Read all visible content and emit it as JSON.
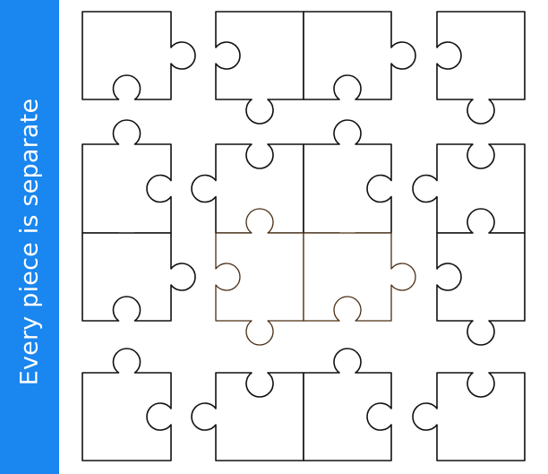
{
  "banner": {
    "text": "Every piece is separate",
    "background_color": "#1a86f0",
    "text_color": "#ffffff"
  },
  "puzzle": {
    "stroke_color": "#111111",
    "highlight_stroke_color": "#4a2e14",
    "fill_color": "#ffffff"
  }
}
